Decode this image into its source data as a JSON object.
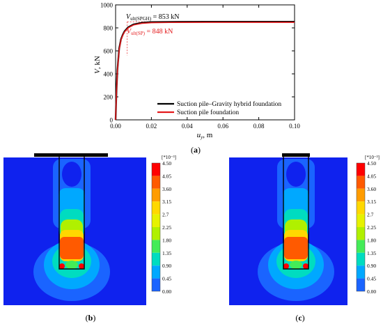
{
  "chart_data": {
    "type": "line",
    "panel_label": "(a)",
    "ylabel_main": "V",
    "ylabel_rest": ", kN",
    "xlabel_main": "u",
    "xlabel_sub": "y",
    "xlabel_rest": ", m",
    "xlim": [
      0,
      0.1
    ],
    "ylim": [
      0,
      1000
    ],
    "xticks": [
      0.0,
      0.02,
      0.04,
      0.06,
      0.08,
      0.1
    ],
    "xtick_labels": [
      "0.00",
      "0.02",
      "0.04",
      "0.06",
      "0.08",
      "0.10"
    ],
    "yticks": [
      0,
      200,
      400,
      600,
      800,
      1000
    ],
    "ytick_labels": [
      "0",
      "200",
      "400",
      "600",
      "800",
      "1000"
    ],
    "legend_position": "bottom-right",
    "series": [
      {
        "name": "Suction pile–Gravity hybrid foundation",
        "color": "#000000",
        "x": [
          0,
          0.0005,
          0.001,
          0.002,
          0.003,
          0.004,
          0.005,
          0.007,
          0.01,
          0.015,
          0.02,
          0.03,
          0.05,
          0.07,
          0.1
        ],
        "y": [
          0,
          250,
          430,
          620,
          700,
          740,
          770,
          805,
          830,
          845,
          850,
          852,
          853,
          853,
          853
        ]
      },
      {
        "name": "Suction pile foundation",
        "color": "#e31a1c",
        "x": [
          0,
          0.0005,
          0.001,
          0.002,
          0.003,
          0.004,
          0.005,
          0.007,
          0.01,
          0.015,
          0.02,
          0.03,
          0.05,
          0.07,
          0.1
        ],
        "y": [
          0,
          240,
          420,
          610,
          695,
          735,
          765,
          800,
          825,
          840,
          845,
          847,
          848,
          848,
          848
        ]
      }
    ],
    "annotations": [
      {
        "main": "V",
        "sub": "ult(SPGH)",
        "rest": " = 853 kN",
        "color": "#000000"
      },
      {
        "main": "V",
        "sub": "ult(SP)",
        "rest": " = 848 kN",
        "color": "#e31a1c"
      }
    ],
    "ult_marker": {
      "x": 0.0065,
      "y": 853
    }
  },
  "contour_plots": [
    {
      "label": "(b)",
      "scale_label": "[*10⁻³]",
      "scale_values": [
        "4.50",
        "4.05",
        "3.60",
        "3.15",
        "2.7",
        "2.25",
        "1.80",
        "1.35",
        "0.90",
        "0.45",
        "0.00"
      ],
      "scale_colors": [
        "#ff0000",
        "#ff5a00",
        "#ff9c00",
        "#ffd800",
        "#e6f200",
        "#b0f000",
        "#44ec58",
        "#00dcc0",
        "#00a8ff",
        "#1a64ff",
        "#0022ee"
      ],
      "plate": "wide"
    },
    {
      "label": "(c)",
      "scale_label": "[*10⁻³]",
      "scale_values": [
        "4.50",
        "4.05",
        "3.60",
        "3.15",
        "2.7",
        "2.25",
        "1.80",
        "1.35",
        "0.90",
        "0.45",
        "0.00"
      ],
      "scale_colors": [
        "#ff0000",
        "#ff5a00",
        "#ff9c00",
        "#ffd800",
        "#e6f200",
        "#b0f000",
        "#44ec58",
        "#00dcc0",
        "#00a8ff",
        "#1a64ff",
        "#0022ee"
      ],
      "plate": "narrow"
    }
  ]
}
